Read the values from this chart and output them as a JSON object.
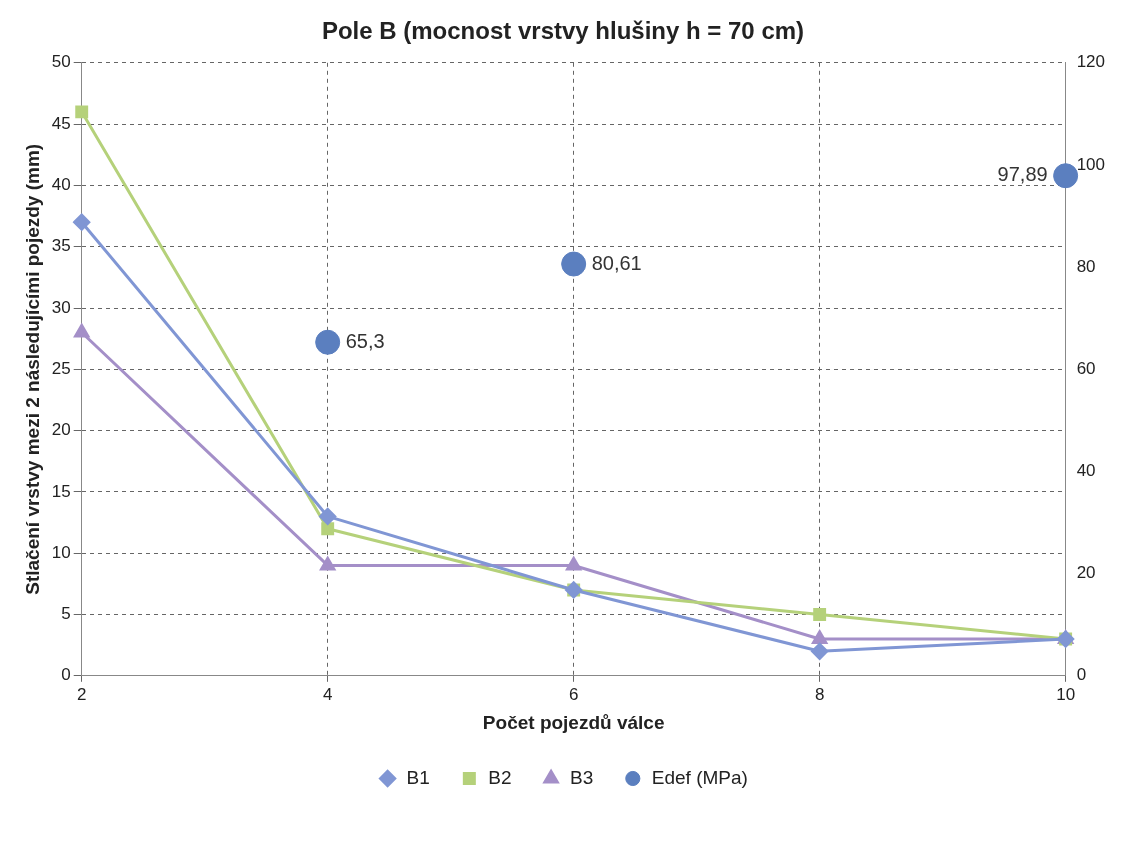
{
  "chart_data": {
    "type": "line",
    "title": "Pole B (mocnost vrstvy hlušiny h = 70 cm)",
    "xlabel": "Počet pojezdů válce",
    "ylabel": "Stlačení vrstvy mezi 2 následujícími pojezdy (mm)",
    "x": [
      2,
      4,
      6,
      8,
      10
    ],
    "xlim": [
      2,
      10
    ],
    "xticks": [
      2,
      4,
      6,
      8,
      10
    ],
    "ylim": [
      0,
      50
    ],
    "yticks": [
      0,
      5,
      10,
      15,
      20,
      25,
      30,
      35,
      40,
      45,
      50
    ],
    "y2lim": [
      0,
      120
    ],
    "y2ticks": [
      0,
      20,
      40,
      60,
      80,
      100,
      120
    ],
    "grid": true,
    "legend": "bottom",
    "series": [
      {
        "name": "B1",
        "color": "#8096d4",
        "marker": "diamond",
        "values": [
          37,
          13,
          7,
          2,
          3
        ]
      },
      {
        "name": "B2",
        "color": "#b5d17a",
        "marker": "square",
        "values": [
          46,
          12,
          7,
          5,
          3
        ]
      },
      {
        "name": "B3",
        "color": "#a48fc8",
        "marker": "triangle",
        "values": [
          28,
          9,
          9,
          3,
          3
        ]
      },
      {
        "name": "Edef (MPa)",
        "type": "scatter",
        "axis": "y2",
        "color": "#5b7fbf",
        "marker": "circle",
        "x": [
          4,
          6,
          10
        ],
        "values": [
          65.3,
          80.61,
          97.89
        ],
        "value_labels": [
          "65,3",
          "80,61",
          "97,89"
        ]
      }
    ]
  }
}
